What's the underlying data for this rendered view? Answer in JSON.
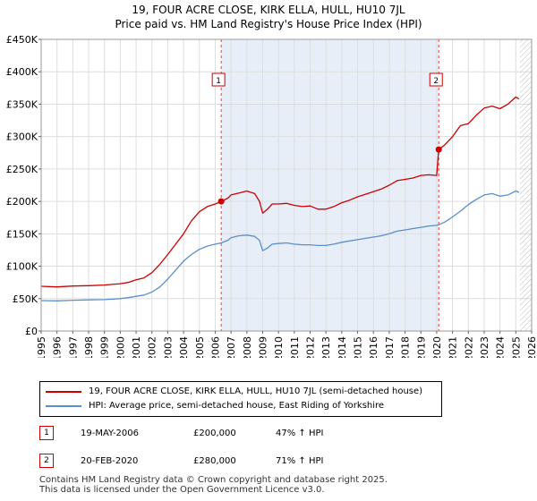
{
  "title_line1": "19, FOUR ACRE CLOSE, KIRK ELLA, HULL, HU10 7JL",
  "title_line2": "Price paid vs. HM Land Registry's House Price Index (HPI)",
  "chart_data": {
    "type": "line",
    "title": "19, FOUR ACRE CLOSE, KIRK ELLA, HULL, HU10 7JL — Price paid vs. HM Land Registry's House Price Index (HPI)",
    "xlabel": "",
    "ylabel": "",
    "xlim": [
      1995,
      2026
    ],
    "ylim": [
      0,
      450000
    ],
    "x_ticks": [
      1995,
      1996,
      1997,
      1998,
      1999,
      2000,
      2001,
      2002,
      2003,
      2004,
      2005,
      2006,
      2007,
      2008,
      2009,
      2010,
      2011,
      2012,
      2013,
      2014,
      2015,
      2016,
      2017,
      2018,
      2019,
      2020,
      2021,
      2022,
      2023,
      2024,
      2025,
      2026
    ],
    "y_ticks": [
      0,
      50000,
      100000,
      150000,
      200000,
      250000,
      300000,
      350000,
      400000,
      450000
    ],
    "y_tick_labels": [
      "£0",
      "£50K",
      "£100K",
      "£150K",
      "£200K",
      "£250K",
      "£300K",
      "£350K",
      "£400K",
      "£450K"
    ],
    "grid": true,
    "shaded_region": {
      "x_start": 2006.38,
      "x_end": 2020.13,
      "color": "#e8eef8"
    },
    "future_hatch_from": 2025.25,
    "series": [
      {
        "name": "19, FOUR ACRE CLOSE, KIRK ELLA, HULL, HU10 7JL (semi-detached house)",
        "color": "#cc0000",
        "x": [
          1995.0,
          1996.0,
          1997.0,
          1998.0,
          1999.0,
          2000.0,
          2000.5,
          2001.0,
          2001.5,
          2002.0,
          2002.5,
          2003.0,
          2003.5,
          2004.0,
          2004.5,
          2005.0,
          2005.5,
          2006.0,
          2006.38,
          2006.8,
          2007.0,
          2007.5,
          2008.0,
          2008.5,
          2008.8,
          2009.0,
          2009.3,
          2009.6,
          2010.0,
          2010.5,
          2011.0,
          2011.5,
          2012.0,
          2012.5,
          2013.0,
          2013.5,
          2014.0,
          2014.5,
          2015.0,
          2015.5,
          2016.0,
          2016.5,
          2017.0,
          2017.5,
          2018.0,
          2018.5,
          2019.0,
          2019.5,
          2020.0,
          2020.13,
          2020.5,
          2021.0,
          2021.5,
          2022.0,
          2022.5,
          2023.0,
          2023.5,
          2024.0,
          2024.5,
          2025.0,
          2025.2
        ],
        "values": [
          69000,
          68000,
          69500,
          70000,
          71000,
          73000,
          75000,
          79000,
          82000,
          90000,
          103000,
          118000,
          134000,
          150000,
          170000,
          184000,
          192000,
          196000,
          200000,
          205000,
          210000,
          213000,
          216000,
          212000,
          200000,
          182000,
          188000,
          196000,
          196000,
          197000,
          194000,
          192000,
          193000,
          188000,
          188000,
          192000,
          198000,
          202000,
          207000,
          211000,
          215000,
          219000,
          225000,
          232000,
          234000,
          236000,
          240000,
          241000,
          240000,
          280000,
          287000,
          300000,
          317000,
          320000,
          333000,
          344000,
          347000,
          343000,
          350000,
          361000,
          358000
        ]
      },
      {
        "name": "HPI: Average price, semi-detached house, East Riding of Yorkshire",
        "color": "#5b8ec9",
        "x": [
          1995.0,
          1996.0,
          1997.0,
          1998.0,
          1999.0,
          2000.0,
          2000.5,
          2001.0,
          2001.5,
          2002.0,
          2002.5,
          2003.0,
          2003.5,
          2004.0,
          2004.5,
          2005.0,
          2005.5,
          2006.0,
          2006.38,
          2006.8,
          2007.0,
          2007.5,
          2008.0,
          2008.5,
          2008.8,
          2009.0,
          2009.3,
          2009.6,
          2010.0,
          2010.5,
          2011.0,
          2011.5,
          2012.0,
          2012.5,
          2013.0,
          2013.5,
          2014.0,
          2014.5,
          2015.0,
          2015.5,
          2016.0,
          2016.5,
          2017.0,
          2017.5,
          2018.0,
          2018.5,
          2019.0,
          2019.5,
          2020.0,
          2020.13,
          2020.5,
          2021.0,
          2021.5,
          2022.0,
          2022.5,
          2023.0,
          2023.5,
          2024.0,
          2024.5,
          2025.0,
          2025.2
        ],
        "values": [
          47000,
          46500,
          47500,
          48000,
          48500,
          50000,
          51500,
          53500,
          55500,
          60000,
          68000,
          80000,
          94000,
          108000,
          118000,
          126000,
          131000,
          134000,
          136000,
          140000,
          144000,
          147000,
          148000,
          146000,
          140000,
          124000,
          128000,
          134000,
          135000,
          136000,
          134000,
          133000,
          133000,
          132000,
          132000,
          134000,
          137000,
          139000,
          141000,
          143000,
          145000,
          147000,
          150000,
          154000,
          156000,
          158000,
          160000,
          162000,
          163000,
          164000,
          168000,
          176000,
          185000,
          195000,
          203000,
          210000,
          212000,
          208000,
          210000,
          216000,
          214000
        ]
      }
    ],
    "annotations": [
      {
        "label": "1",
        "x": 2006.38,
        "y": 200000
      },
      {
        "label": "2",
        "x": 2020.13,
        "y": 280000
      }
    ]
  },
  "legend": {
    "items": [
      {
        "label": "19, FOUR ACRE CLOSE, KIRK ELLA, HULL, HU10 7JL (semi-detached house)",
        "color": "#cc0000"
      },
      {
        "label": "HPI: Average price, semi-detached house, East Riding of Yorkshire",
        "color": "#5b8ec9"
      }
    ]
  },
  "transactions": [
    {
      "num": "1",
      "date": "19-MAY-2006",
      "price": "£200,000",
      "hpi": "47% ↑ HPI"
    },
    {
      "num": "2",
      "date": "20-FEB-2020",
      "price": "£280,000",
      "hpi": "71% ↑ HPI"
    }
  ],
  "footer": {
    "line1": "Contains HM Land Registry data © Crown copyright and database right 2025.",
    "line2": "This data is licensed under the Open Government Licence v3.0."
  }
}
